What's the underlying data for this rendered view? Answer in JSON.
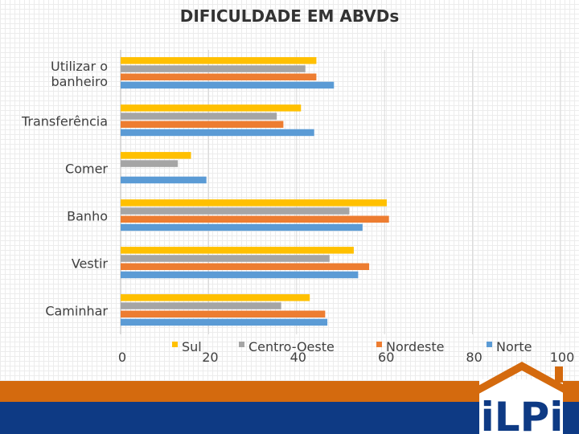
{
  "chart_data": {
    "type": "bar",
    "orientation": "horizontal",
    "title": "DIFICULDADE EM ABVDs",
    "categories": [
      "Utilizar o banheiro",
      "Transferência",
      "Comer",
      "Banho",
      "Vestir",
      "Caminhar"
    ],
    "category_lines": [
      [
        "Utilizar o",
        "banheiro"
      ],
      [
        "Transferência"
      ],
      [
        "Comer"
      ],
      [
        "Banho"
      ],
      [
        "Vestir"
      ],
      [
        "Caminhar"
      ]
    ],
    "series": [
      {
        "name": "Sul",
        "color": "#ffc000",
        "values": [
          44.5,
          41,
          16,
          60.5,
          53,
          43
        ]
      },
      {
        "name": "Centro-Oeste",
        "color": "#a5a5a5",
        "values": [
          42,
          35.5,
          13,
          52,
          47.5,
          36.5
        ]
      },
      {
        "name": "Nordeste",
        "color": "#ed7d31",
        "values": [
          44.5,
          37,
          0,
          61,
          56.5,
          46.5
        ]
      },
      {
        "name": "Norte",
        "color": "#5b9bd5",
        "values": [
          48.5,
          44,
          19.5,
          55,
          54,
          47
        ]
      }
    ],
    "xlim": [
      0,
      100
    ],
    "xticks": [
      0,
      20,
      40,
      60,
      80,
      100
    ],
    "xlabel": "",
    "ylabel": "",
    "grid": "vertical",
    "legend": "bottom"
  },
  "logo": {
    "text": "iLPi"
  }
}
